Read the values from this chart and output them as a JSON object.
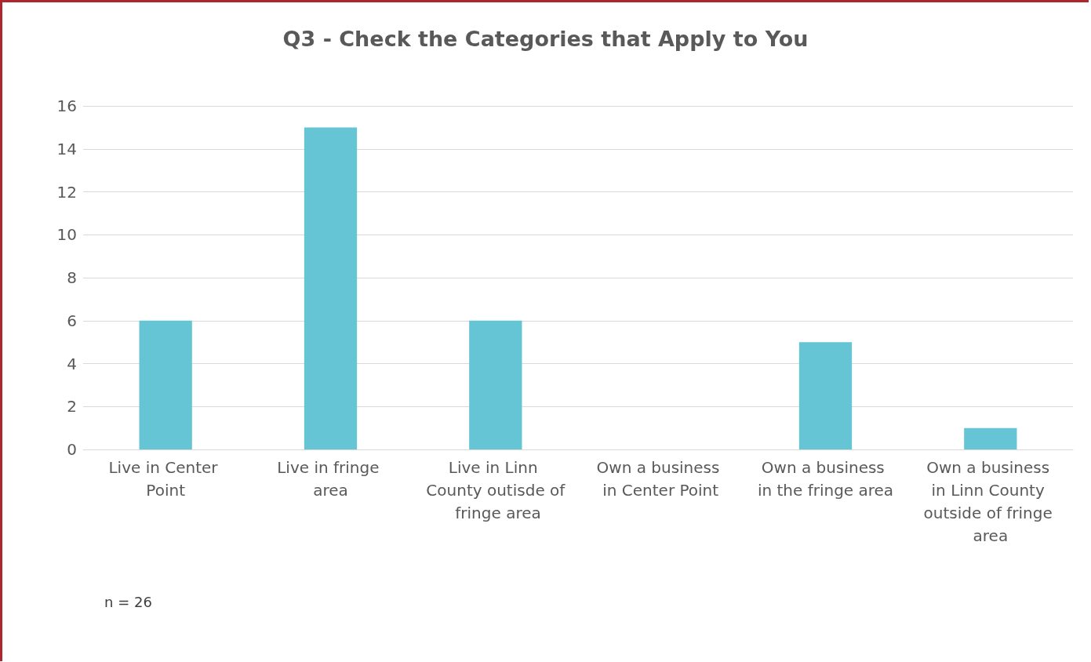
{
  "chart_data": {
    "type": "bar",
    "title": "Q3 - Check the Categories that Apply to You",
    "categories": [
      "Live in Center Point",
      "Live in fringe area",
      "Live in Linn County outisde of fringe area",
      "Own a business in Center Point",
      "Own a business in the fringe area",
      "Own a business in Linn County outside of fringe area"
    ],
    "values": [
      6,
      15,
      6,
      0,
      5,
      1
    ],
    "color": "#66c5d4",
    "ylim": [
      0,
      16
    ],
    "yticks": [
      0,
      2,
      4,
      6,
      8,
      10,
      12,
      14,
      16
    ],
    "grid": "y",
    "annotations": [
      "n = 26"
    ]
  }
}
